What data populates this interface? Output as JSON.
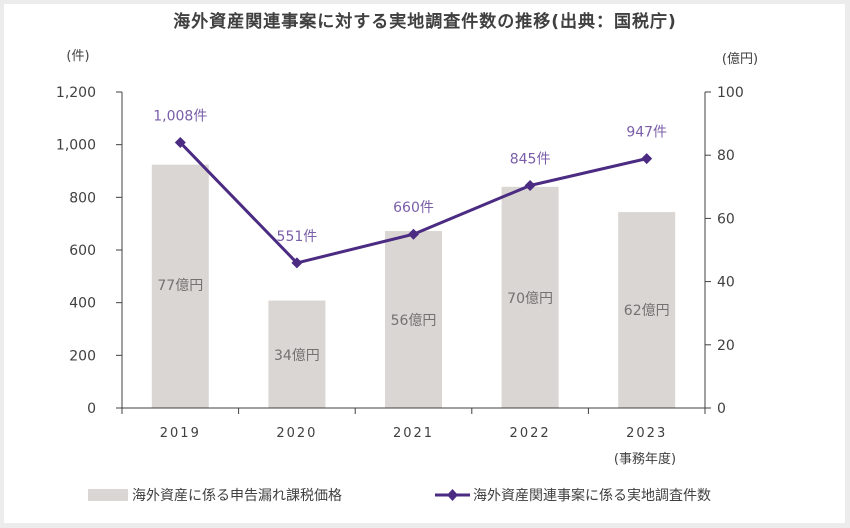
{
  "chart_data": {
    "type": "bar+line",
    "title": "海外資産関連事案に対する実地調査件数の推移(出典：国税庁)",
    "xlabel": "(事務年度)",
    "categories": [
      "2019",
      "2020",
      "2021",
      "2022",
      "2023"
    ],
    "y_left": {
      "unit_label": "(件)",
      "range": [
        0,
        1200
      ],
      "ticks": [
        "0",
        "200",
        "400",
        "600",
        "800",
        "1,000",
        "1,200"
      ],
      "tick_values": [
        0,
        200,
        400,
        600,
        800,
        1000,
        1200
      ]
    },
    "y_right": {
      "unit_label": "(億円)",
      "range": [
        0,
        100
      ],
      "ticks": [
        "0",
        "20",
        "40",
        "60",
        "80",
        "100"
      ],
      "tick_values": [
        0,
        20,
        40,
        60,
        80,
        100
      ]
    },
    "series": [
      {
        "name": "海外資産に係る申告漏れ課税価格",
        "type": "bar",
        "axis": "right",
        "values": [
          77,
          34,
          56,
          70,
          62
        ],
        "labels": [
          "77億円",
          "34億円",
          "56億円",
          "70億円",
          "62億円"
        ],
        "color": "#dad6d3"
      },
      {
        "name": "海外資産関連事案に係る実地調査件数",
        "type": "line",
        "axis": "left",
        "marker": "diamond",
        "values": [
          1008,
          551,
          660,
          845,
          947
        ],
        "labels": [
          "1,008件",
          "551件",
          "660件",
          "845件",
          "947件"
        ],
        "color": "#4b2c82",
        "label_color": "#7a5ea8"
      }
    ],
    "grid": false,
    "legend": "bottom"
  }
}
